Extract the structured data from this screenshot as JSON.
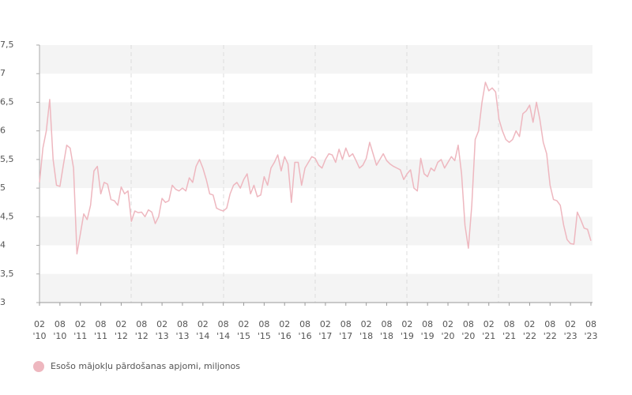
{
  "chart_data": {
    "type": "line",
    "x": [
      "2010-02",
      "2010-03",
      "2010-04",
      "2010-05",
      "2010-06",
      "2010-07",
      "2010-08",
      "2010-09",
      "2010-10",
      "2010-11",
      "2010-12",
      "2011-01",
      "2011-02",
      "2011-03",
      "2011-04",
      "2011-05",
      "2011-06",
      "2011-07",
      "2011-08",
      "2011-09",
      "2011-10",
      "2011-11",
      "2011-12",
      "2012-01",
      "2012-02",
      "2012-03",
      "2012-04",
      "2012-05",
      "2012-06",
      "2012-07",
      "2012-08",
      "2012-09",
      "2012-10",
      "2012-11",
      "2012-12",
      "2013-01",
      "2013-02",
      "2013-03",
      "2013-04",
      "2013-05",
      "2013-06",
      "2013-07",
      "2013-08",
      "2013-09",
      "2013-10",
      "2013-11",
      "2013-12",
      "2014-01",
      "2014-02",
      "2014-03",
      "2014-04",
      "2014-05",
      "2014-06",
      "2014-07",
      "2014-08",
      "2014-09",
      "2014-10",
      "2014-11",
      "2014-12",
      "2015-01",
      "2015-02",
      "2015-03",
      "2015-04",
      "2015-05",
      "2015-06",
      "2015-07",
      "2015-08",
      "2015-09",
      "2015-10",
      "2015-11",
      "2015-12",
      "2016-01",
      "2016-02",
      "2016-03",
      "2016-04",
      "2016-05",
      "2016-06",
      "2016-07",
      "2016-08",
      "2016-09",
      "2016-10",
      "2016-11",
      "2016-12",
      "2017-01",
      "2017-02",
      "2017-03",
      "2017-04",
      "2017-05",
      "2017-06",
      "2017-07",
      "2017-08",
      "2017-09",
      "2017-10",
      "2017-11",
      "2017-12",
      "2018-01",
      "2018-02",
      "2018-03",
      "2018-04",
      "2018-05",
      "2018-06",
      "2018-07",
      "2018-08",
      "2018-09",
      "2018-10",
      "2018-11",
      "2018-12",
      "2019-01",
      "2019-02",
      "2019-03",
      "2019-04",
      "2019-05",
      "2019-06",
      "2019-07",
      "2019-08",
      "2019-09",
      "2019-10",
      "2019-11",
      "2019-12",
      "2020-01",
      "2020-02",
      "2020-03",
      "2020-04",
      "2020-05",
      "2020-06",
      "2020-07",
      "2020-08",
      "2020-09",
      "2020-10",
      "2020-11",
      "2020-12",
      "2021-01",
      "2021-02",
      "2021-03",
      "2021-04",
      "2021-05",
      "2021-06",
      "2021-07",
      "2021-08",
      "2021-09",
      "2021-10",
      "2021-11",
      "2021-12",
      "2022-01",
      "2022-02",
      "2022-03",
      "2022-04",
      "2022-05",
      "2022-06",
      "2022-07",
      "2022-08",
      "2022-09",
      "2022-10",
      "2022-11",
      "2022-12",
      "2023-01",
      "2023-02",
      "2023-03",
      "2023-04",
      "2023-05",
      "2023-06",
      "2023-07",
      "2023-08"
    ],
    "series": [
      {
        "name": "Esošo mājokļu pārdošanas apjomi, miljonos",
        "color": "#eeb7bf",
        "values": [
          5.1,
          5.7,
          6.0,
          6.55,
          5.5,
          5.05,
          5.03,
          5.4,
          5.75,
          5.7,
          5.35,
          3.85,
          4.2,
          4.55,
          4.45,
          4.7,
          5.3,
          5.38,
          4.9,
          5.1,
          5.07,
          4.8,
          4.78,
          4.7,
          5.02,
          4.9,
          4.95,
          4.42,
          4.6,
          4.57,
          4.58,
          4.5,
          4.62,
          4.58,
          4.38,
          4.5,
          4.82,
          4.75,
          4.78,
          5.05,
          4.98,
          4.95,
          5.0,
          4.95,
          5.18,
          5.1,
          5.38,
          5.5,
          5.35,
          5.15,
          4.9,
          4.88,
          4.65,
          4.62,
          4.6,
          4.65,
          4.9,
          5.05,
          5.1,
          5.0,
          5.15,
          5.25,
          4.9,
          5.05,
          4.85,
          4.88,
          5.2,
          5.05,
          5.35,
          5.45,
          5.58,
          5.3,
          5.55,
          5.42,
          4.75,
          5.45,
          5.45,
          5.05,
          5.35,
          5.45,
          5.55,
          5.52,
          5.4,
          5.35,
          5.5,
          5.6,
          5.58,
          5.45,
          5.68,
          5.5,
          5.7,
          5.55,
          5.6,
          5.48,
          5.35,
          5.4,
          5.52,
          5.8,
          5.6,
          5.4,
          5.5,
          5.6,
          5.48,
          5.42,
          5.38,
          5.35,
          5.32,
          5.15,
          5.25,
          5.32,
          5.0,
          4.95,
          5.52,
          5.25,
          5.2,
          5.35,
          5.3,
          5.45,
          5.5,
          5.35,
          5.45,
          5.55,
          5.48,
          5.75,
          5.25,
          4.35,
          3.95,
          4.7,
          5.85,
          6.0,
          6.5,
          6.85,
          6.7,
          6.75,
          6.68,
          6.2,
          6.0,
          5.85,
          5.8,
          5.85,
          6.0,
          5.9,
          6.3,
          6.35,
          6.45,
          6.15,
          6.5,
          6.2,
          5.8,
          5.6,
          5.05,
          4.8,
          4.78,
          4.7,
          4.35,
          4.1,
          4.03,
          4.02,
          4.58,
          4.45,
          4.3,
          4.28,
          4.08
        ]
      }
    ],
    "xlim": [
      "2010-02",
      "2023-08"
    ],
    "xticks": [
      {
        "value": "2010-02",
        "label": [
          "02",
          "'10"
        ]
      },
      {
        "value": "2010-08",
        "label": [
          "08",
          "'10"
        ]
      },
      {
        "value": "2011-02",
        "label": [
          "02",
          "'11"
        ]
      },
      {
        "value": "2011-08",
        "label": [
          "08",
          "'11"
        ]
      },
      {
        "value": "2012-02",
        "label": [
          "02",
          "'12"
        ]
      },
      {
        "value": "2012-08",
        "label": [
          "08",
          "'12"
        ]
      },
      {
        "value": "2013-02",
        "label": [
          "02",
          "'13"
        ]
      },
      {
        "value": "2013-08",
        "label": [
          "08",
          "'13"
        ]
      },
      {
        "value": "2014-02",
        "label": [
          "02",
          "'14"
        ]
      },
      {
        "value": "2014-08",
        "label": [
          "08",
          "'14"
        ]
      },
      {
        "value": "2015-02",
        "label": [
          "02",
          "'15"
        ]
      },
      {
        "value": "2015-08",
        "label": [
          "08",
          "'15"
        ]
      },
      {
        "value": "2016-02",
        "label": [
          "02",
          "'16"
        ]
      },
      {
        "value": "2016-08",
        "label": [
          "08",
          "'16"
        ]
      },
      {
        "value": "2017-02",
        "label": [
          "02",
          "'17"
        ]
      },
      {
        "value": "2017-08",
        "label": [
          "08",
          "'17"
        ]
      },
      {
        "value": "2018-02",
        "label": [
          "02",
          "'18"
        ]
      },
      {
        "value": "2018-08",
        "label": [
          "08",
          "'18"
        ]
      },
      {
        "value": "2019-02",
        "label": [
          "02",
          "'19"
        ]
      },
      {
        "value": "2019-08",
        "label": [
          "08",
          "'19"
        ]
      },
      {
        "value": "2020-02",
        "label": [
          "02",
          "'20"
        ]
      },
      {
        "value": "2020-08",
        "label": [
          "08",
          "'20"
        ]
      },
      {
        "value": "2021-02",
        "label": [
          "02",
          "'21"
        ]
      },
      {
        "value": "2021-08",
        "label": [
          "08",
          "'21"
        ]
      },
      {
        "value": "2022-02",
        "label": [
          "02",
          "'22"
        ]
      },
      {
        "value": "2022-08",
        "label": [
          "08",
          "'22"
        ]
      },
      {
        "value": "2023-02",
        "label": [
          "02",
          "'23"
        ]
      },
      {
        "value": "2023-08",
        "label": [
          "08",
          "'23"
        ]
      }
    ],
    "ylim": [
      3,
      7.5
    ],
    "yticks": [
      3,
      {
        "value": 3.5,
        "label": "3,5"
      },
      4,
      {
        "value": 4.5,
        "label": "4,5"
      },
      5,
      {
        "value": 5.5,
        "label": "5,5"
      },
      6,
      {
        "value": 6.5,
        "label": "6,5"
      },
      7,
      {
        "value": 7.5,
        "label": "7,5"
      }
    ],
    "grid": "bands",
    "legend": "bottom-left"
  }
}
